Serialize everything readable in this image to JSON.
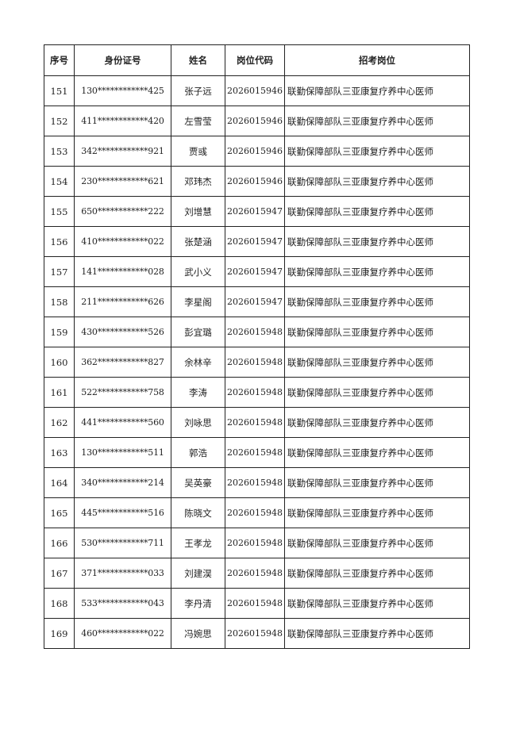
{
  "table": {
    "headers": [
      "序号",
      "身份证号",
      "姓名",
      "岗位代码",
      "招考岗位"
    ],
    "rows": [
      [
        "151",
        "130************425",
        "张子远",
        "2026015946",
        "联勤保障部队三亚康复疗养中心医师"
      ],
      [
        "152",
        "411************420",
        "左雪莹",
        "2026015946",
        "联勤保障部队三亚康复疗养中心医师"
      ],
      [
        "153",
        "342************921",
        "贾彧",
        "2026015946",
        "联勤保障部队三亚康复疗养中心医师"
      ],
      [
        "154",
        "230************621",
        "邓玮杰",
        "2026015946",
        "联勤保障部队三亚康复疗养中心医师"
      ],
      [
        "155",
        "650************222",
        "刘增慧",
        "2026015947",
        "联勤保障部队三亚康复疗养中心医师"
      ],
      [
        "156",
        "410************022",
        "张楚涵",
        "2026015947",
        "联勤保障部队三亚康复疗养中心医师"
      ],
      [
        "157",
        "141************028",
        "武小义",
        "2026015947",
        "联勤保障部队三亚康复疗养中心医师"
      ],
      [
        "158",
        "211************626",
        "李星阁",
        "2026015947",
        "联勤保障部队三亚康复疗养中心医师"
      ],
      [
        "159",
        "430************526",
        "彭宜璐",
        "2026015948",
        "联勤保障部队三亚康复疗养中心医师"
      ],
      [
        "160",
        "362************827",
        "余林辛",
        "2026015948",
        "联勤保障部队三亚康复疗养中心医师"
      ],
      [
        "161",
        "522************758",
        "李涛",
        "2026015948",
        "联勤保障部队三亚康复疗养中心医师"
      ],
      [
        "162",
        "441************560",
        "刘咏思",
        "2026015948",
        "联勤保障部队三亚康复疗养中心医师"
      ],
      [
        "163",
        "130************511",
        "郭浩",
        "2026015948",
        "联勤保障部队三亚康复疗养中心医师"
      ],
      [
        "164",
        "340************214",
        "吴英豪",
        "2026015948",
        "联勤保障部队三亚康复疗养中心医师"
      ],
      [
        "165",
        "445************516",
        "陈晓文",
        "2026015948",
        "联勤保障部队三亚康复疗养中心医师"
      ],
      [
        "166",
        "530************711",
        "王孝龙",
        "2026015948",
        "联勤保障部队三亚康复疗养中心医师"
      ],
      [
        "167",
        "371************033",
        "刘建淏",
        "2026015948",
        "联勤保障部队三亚康复疗养中心医师"
      ],
      [
        "168",
        "533************043",
        "李丹清",
        "2026015948",
        "联勤保障部队三亚康复疗养中心医师"
      ],
      [
        "169",
        "460************022",
        "冯婉思",
        "2026015948",
        "联勤保障部队三亚康复疗养中心医师"
      ]
    ]
  }
}
